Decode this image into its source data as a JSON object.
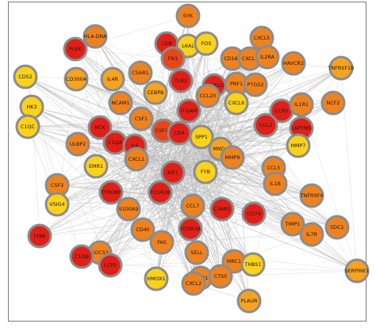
{
  "figure": {
    "type": "network",
    "palette": {
      "edge": "#b9b9b9",
      "node_border": "#8c8c8c",
      "red": "#e02018",
      "red_orange": "#e8461a",
      "orange": "#f0821e",
      "light_orange": "#f6a321",
      "yellow": "#fbd11c",
      "frame": "#7a7a7a"
    }
  },
  "nodes": [
    {
      "label": "SYK",
      "shade": "orange"
    },
    {
      "label": "HLA-DRA",
      "shade": "orange"
    },
    {
      "label": "CD8",
      "shade": "red"
    },
    {
      "label": "L6AL",
      "shade": "yellow"
    },
    {
      "label": "FOS",
      "shade": "yellow"
    },
    {
      "label": "CXCL5",
      "shade": "orange"
    },
    {
      "label": "PLEK",
      "shade": "red"
    },
    {
      "label": "FN1",
      "shade": "red_orange"
    },
    {
      "label": "CD163",
      "shade": "orange"
    },
    {
      "label": "CXCL3",
      "shade": "orange"
    },
    {
      "label": "IL2RA",
      "shade": "orange"
    },
    {
      "label": "HAVCR2",
      "shade": "orange"
    },
    {
      "label": "TNFRSF1B",
      "shade": "light_orange"
    },
    {
      "label": "C5AR1",
      "shade": "orange"
    },
    {
      "label": "CD300A",
      "shade": "light_orange"
    },
    {
      "label": "IL4R",
      "shade": "light_orange"
    },
    {
      "label": "CD52",
      "shade": "yellow"
    },
    {
      "label": "TLR2",
      "shade": "red"
    },
    {
      "label": "FCER1G",
      "shade": "red"
    },
    {
      "label": "PRF1",
      "shade": "orange"
    },
    {
      "label": "PTGS2",
      "shade": "orange"
    },
    {
      "label": "NCF2",
      "shade": "orange"
    },
    {
      "label": "CEBPB",
      "shade": "light_orange"
    },
    {
      "label": "NCAM1",
      "shade": "orange"
    },
    {
      "label": "ITGAM",
      "shade": "red"
    },
    {
      "label": "CCL20",
      "shade": "orange"
    },
    {
      "label": "CXCL6",
      "shade": "yellow"
    },
    {
      "label": "CCR5",
      "shade": "red"
    },
    {
      "label": "IL1R1",
      "shade": "orange"
    },
    {
      "label": "HK3",
      "shade": "yellow"
    },
    {
      "label": "CSF1",
      "shade": "orange"
    },
    {
      "label": "CSF1R",
      "shade": "red_orange"
    },
    {
      "label": "CCL2",
      "shade": "red"
    },
    {
      "label": "C1QC",
      "shade": "yellow"
    },
    {
      "label": "HCK",
      "shade": "red"
    },
    {
      "label": "CD4",
      "shade": "red"
    },
    {
      "label": "SPP1",
      "shade": "yellow"
    },
    {
      "label": "MNDA",
      "shade": "light_orange"
    },
    {
      "label": "LAPTM5",
      "shade": "red"
    },
    {
      "label": "MMP7",
      "shade": "yellow"
    },
    {
      "label": "ULBP2",
      "shade": "orange"
    },
    {
      "label": "C1QA",
      "shade": "red"
    },
    {
      "label": "IL6",
      "shade": "red"
    },
    {
      "label": "MMP9",
      "shade": "orange"
    },
    {
      "label": "EMR1",
      "shade": "yellow"
    },
    {
      "label": "CXCL1",
      "shade": "orange"
    },
    {
      "label": "AIF1",
      "shade": "red"
    },
    {
      "label": "FYB",
      "shade": "yellow"
    },
    {
      "label": "CCL5",
      "shade": "orange"
    },
    {
      "label": "CSF3",
      "shade": "orange"
    },
    {
      "label": "TYROBP",
      "shade": "red"
    },
    {
      "label": "FCGR2B",
      "shade": "red"
    },
    {
      "label": "IL1B",
      "shade": "orange"
    },
    {
      "label": "TNFRSF4",
      "shade": "orange"
    },
    {
      "label": "VSIG4",
      "shade": "yellow"
    },
    {
      "label": "S100A9",
      "shade": "orange"
    },
    {
      "label": "CCL7",
      "shade": "orange"
    },
    {
      "label": "C3AR1",
      "shade": "red"
    },
    {
      "label": "CD74",
      "shade": "red"
    },
    {
      "label": "TIMP1",
      "shade": "orange"
    },
    {
      "label": "SDC1",
      "shade": "orange"
    },
    {
      "label": "CD40",
      "shade": "orange"
    },
    {
      "label": "FCGR3A",
      "shade": "red"
    },
    {
      "label": "IL7R",
      "shade": "orange"
    },
    {
      "label": "LY86",
      "shade": "red"
    },
    {
      "label": "SOCS3",
      "shade": "orange"
    },
    {
      "label": "FAS",
      "shade": "orange"
    },
    {
      "label": "SELL",
      "shade": "orange"
    },
    {
      "label": "MRC1",
      "shade": "orange"
    },
    {
      "label": "MMP1",
      "shade": "orange"
    },
    {
      "label": "C1QB",
      "shade": "red"
    },
    {
      "label": "LCP2",
      "shade": "red"
    },
    {
      "label": "CTSS",
      "shade": "orange"
    },
    {
      "label": "THBS1",
      "shade": "yellow"
    },
    {
      "label": "SERPINE1",
      "shade": "light_orange"
    },
    {
      "label": "HMOX1",
      "shade": "yellow"
    },
    {
      "label": "CXCL2",
      "shade": "orange"
    },
    {
      "label": "PLAUR",
      "shade": "light_orange"
    }
  ]
}
